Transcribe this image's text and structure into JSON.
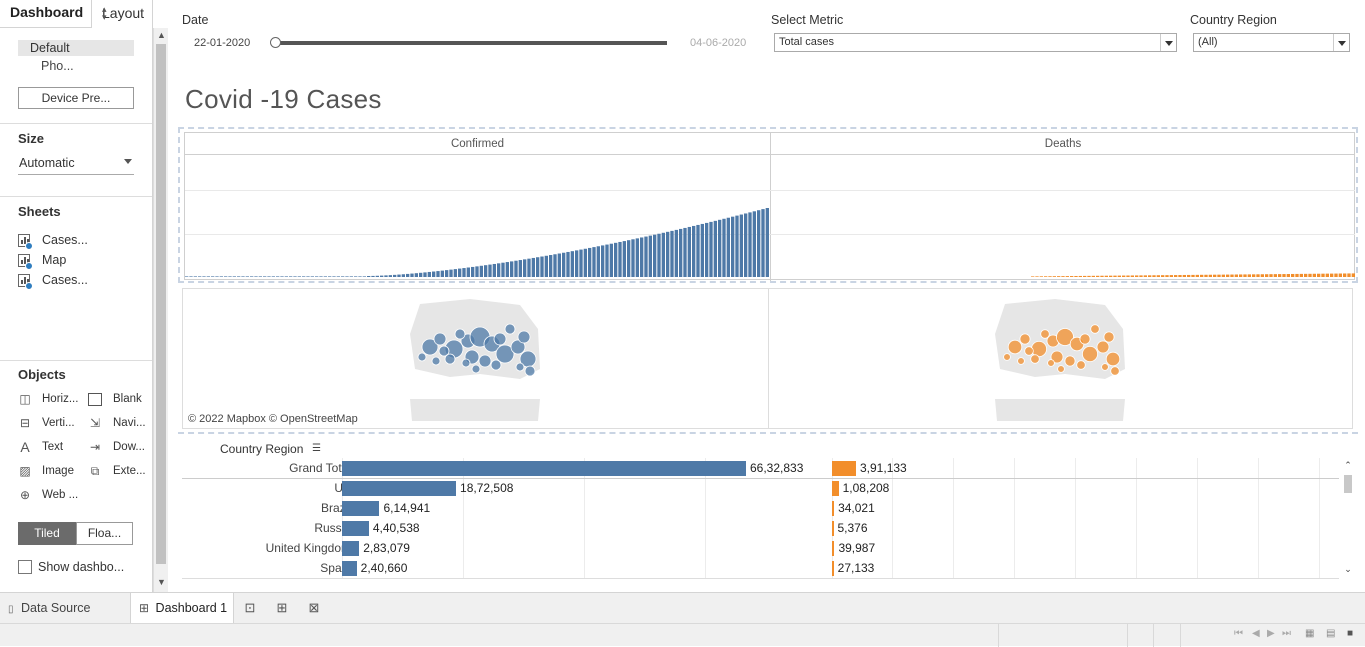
{
  "left_pane": {
    "tab_dashboard": "Dashboard",
    "tab_layout": "Layout",
    "device_default": "Default",
    "device_phone": "Pho...",
    "device_preview_button": "Device Pre...",
    "size_title": "Size",
    "size_value": "Automatic",
    "sheets_title": "Sheets",
    "sheets": [
      {
        "label": "Cases...",
        "icon": "bar-chart-sheet-icon"
      },
      {
        "label": "Map",
        "icon": "map-sheet-icon"
      },
      {
        "label": "Cases...",
        "icon": "bar-chart-sheet-icon"
      }
    ],
    "objects_title": "Objects",
    "objects": [
      {
        "label": "Horiz...",
        "icon": "horizontal-container-icon"
      },
      {
        "label": "Blank",
        "icon": "blank-icon"
      },
      {
        "label": "Verti...",
        "icon": "vertical-container-icon"
      },
      {
        "label": "Navi...",
        "icon": "navigation-icon"
      },
      {
        "label": "Text",
        "icon": "text-icon"
      },
      {
        "label": "Dow...",
        "icon": "download-icon"
      },
      {
        "label": "Image",
        "icon": "image-icon"
      },
      {
        "label": "Exte...",
        "icon": "extension-icon"
      },
      {
        "label": "Web ...",
        "icon": "web-page-icon"
      }
    ],
    "tiled_label": "Tiled",
    "floating_label": "Floa...",
    "show_dashboard_label": "Show dashbo..."
  },
  "filters": {
    "date_label": "Date",
    "date_start": "22-01-2020",
    "date_end": "04-06-2020",
    "date_slider_position": 0,
    "metric_label": "Select Metric",
    "metric_value": "Total cases",
    "country_label": "Country Region",
    "country_value": "(All)"
  },
  "dashboard_title": "Covid -19 Cases",
  "chart_data": [
    {
      "type": "bar",
      "title": "Confirmed",
      "color": "#4e79a7",
      "x": "days 22-01-2020 to 04-06-2020 (135 days)",
      "values_relative_to_max": "monotonic growth curve (≈0 for first ~45 days, rising to max at last day)"
    },
    {
      "type": "bar",
      "title": "Deaths",
      "color": "#f28e2b",
      "values_relative_to_max": "very small bars, visible only late in period"
    },
    {
      "type": "bar",
      "title": "Country Region totals",
      "categories": [
        "Grand Total",
        "US",
        "Brazil",
        "Russia",
        "United Kingdom",
        "Spain"
      ],
      "series": [
        {
          "name": "Confirmed",
          "color": "#4e79a7",
          "values": [
            6632833,
            1872508,
            614941,
            440538,
            283079,
            240660
          ],
          "labels": [
            "66,32,833",
            "18,72,508",
            "6,14,941",
            "4,40,538",
            "2,83,079",
            "2,40,660"
          ]
        },
        {
          "name": "Deaths",
          "color": "#f28e2b",
          "values": [
            391133,
            108208,
            34021,
            5376,
            39987,
            27133
          ],
          "labels": [
            "3,91,133",
            "1,08,208",
            "34,021",
            "5,376",
            "39,987",
            "27,133"
          ]
        }
      ]
    }
  ],
  "map_credit": "© 2022 Mapbox © OpenStreetMap",
  "table_header": "Country Region",
  "bottom_tabs": {
    "data_source": "Data Source",
    "dashboard_1": "Dashboard 1"
  },
  "colors": {
    "confirmed": "#4e79a7",
    "deaths": "#f28e2b"
  }
}
